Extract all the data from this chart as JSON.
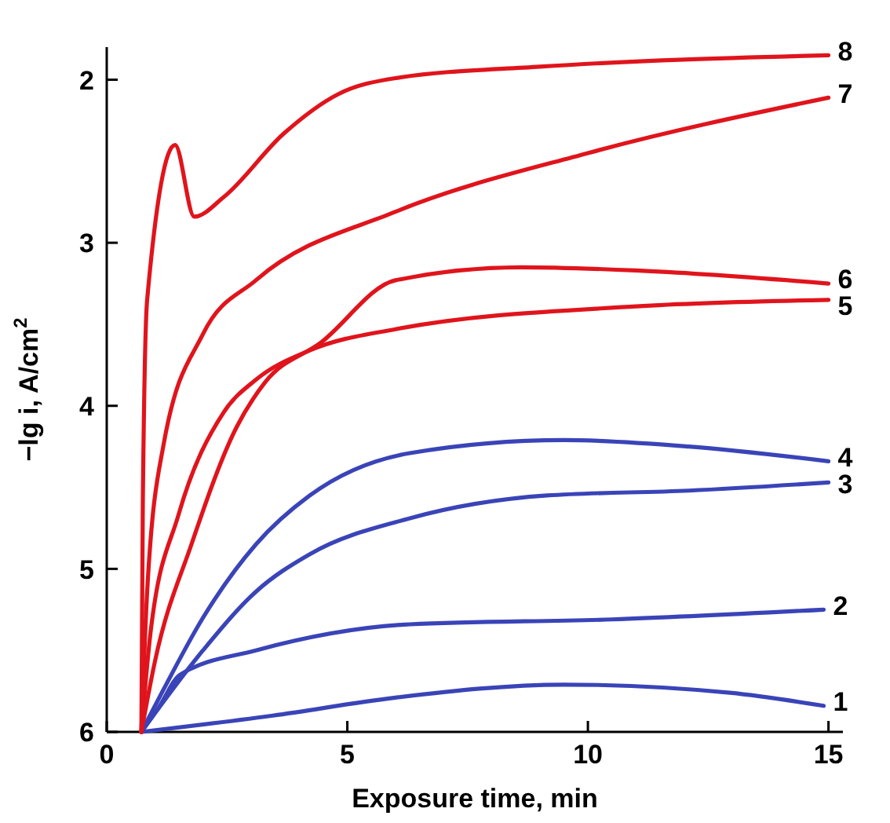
{
  "chart_data": {
    "type": "line",
    "xlabel": "Exposure time, min",
    "ylabel": "−lg i, A/cm$^{2}$",
    "xlim": [
      0,
      15.3
    ],
    "ylim": [
      6,
      1.8
    ],
    "xticks": [
      0,
      5,
      10,
      15
    ],
    "yticks": [
      2,
      3,
      4,
      5,
      6
    ],
    "grid": false,
    "marker": "none",
    "line_style": "solid",
    "series": [
      {
        "name": "1",
        "color": "#3a44b8",
        "x": [
          0.72,
          3.45,
          6.0,
          9.5,
          12.95,
          14.9
        ],
        "values": [
          6.0,
          5.9,
          5.79,
          5.71,
          5.76,
          5.84
        ]
      },
      {
        "name": "2",
        "color": "#3a44b8",
        "x": [
          0.72,
          1.08,
          1.52,
          3.1,
          6.3,
          10.5,
          14.9
        ],
        "values": [
          6.0,
          5.85,
          5.65,
          5.5,
          5.34,
          5.31,
          5.25
        ]
      },
      {
        "name": "3",
        "color": "#3a44b8",
        "x": [
          0.72,
          2.0,
          3.1,
          4.22,
          6.3,
          9.15,
          12.1,
          15.0
        ],
        "values": [
          6.0,
          5.5,
          5.14,
          4.91,
          4.69,
          4.55,
          4.52,
          4.47
        ]
      },
      {
        "name": "4",
        "color": "#3a44b8",
        "x": [
          0.72,
          1.18,
          2.0,
          3.1,
          4.22,
          6.3,
          9.5,
          12.1,
          15.0
        ],
        "values": [
          6.0,
          5.74,
          5.3,
          4.85,
          4.55,
          4.29,
          4.21,
          4.25,
          4.34
        ]
      },
      {
        "name": "5",
        "color": "#e0141c",
        "x": [
          0.72,
          0.91,
          1.49,
          2.43,
          3.1,
          4.22,
          6.0,
          11.0,
          15.0
        ],
        "values": [
          6.0,
          5.39,
          4.67,
          4.04,
          3.84,
          3.66,
          3.53,
          3.39,
          3.35
        ]
      },
      {
        "name": "6",
        "color": "#e0141c",
        "x": [
          0.72,
          1.0,
          1.76,
          2.7,
          3.28,
          4.46,
          6.0,
          8.6,
          11.0,
          15.0
        ],
        "values": [
          6.0,
          5.57,
          4.85,
          4.13,
          3.86,
          3.61,
          3.23,
          3.15,
          3.17,
          3.25
        ]
      },
      {
        "name": "7",
        "color": "#e0141c",
        "x": [
          0.72,
          0.84,
          1.18,
          2.0,
          3.1,
          6.0,
          10.0,
          15.0
        ],
        "values": [
          6.0,
          5.14,
          4.24,
          3.56,
          3.23,
          2.81,
          2.45,
          2.11
        ]
      },
      {
        "name": "8",
        "color": "#e0141c",
        "x": [
          0.72,
          0.75,
          0.84,
          1.42,
          1.82,
          2.43,
          3.68,
          4.8,
          6.0,
          9.0,
          15.0
        ],
        "values": [
          6.0,
          4.6,
          3.35,
          2.4,
          2.84,
          2.72,
          2.33,
          2.09,
          1.99,
          1.92,
          1.85
        ]
      }
    ]
  }
}
